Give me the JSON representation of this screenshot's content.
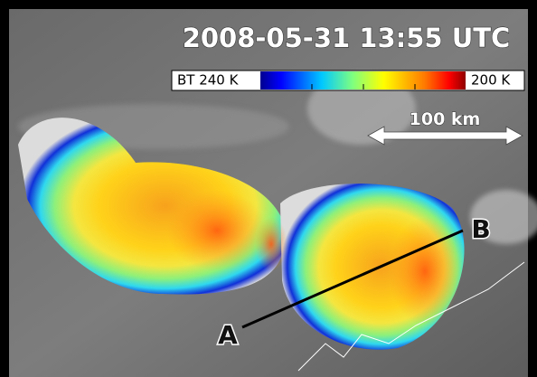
{
  "title": "2008-05-31 13:55 UTC",
  "colorbar": {
    "left_label": "BT 240 K",
    "right_label": "200 K"
  },
  "scale_bar": {
    "label": "100 km"
  },
  "points": {
    "start": "A",
    "end": "B"
  }
}
